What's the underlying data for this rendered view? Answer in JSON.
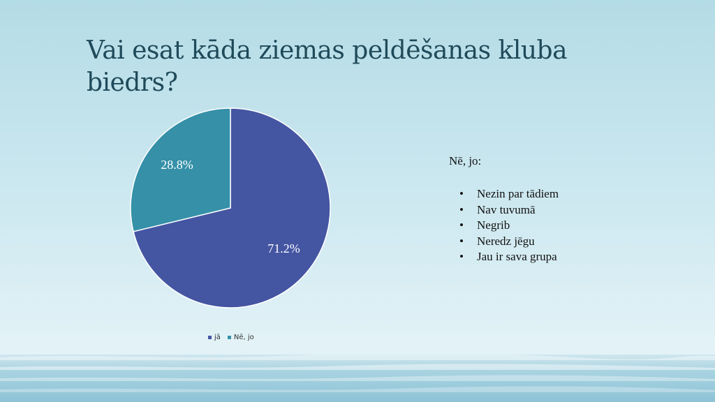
{
  "slide": {
    "title": "Vai esat kāda ziemas peldēšanas kluba biedrs?"
  },
  "chart_data": {
    "type": "pie",
    "categories": [
      "jā",
      "Nē, jo"
    ],
    "values": [
      71.2,
      28.8
    ],
    "data_labels": [
      "71.2%",
      "28.8%"
    ],
    "colors": [
      "#4455a2",
      "#3590a8"
    ],
    "legend_position": "bottom"
  },
  "side_panel": {
    "heading": "Nē, jo:",
    "reasons": [
      "Nezin par tādiem",
      "Nav tuvumā",
      "Negrib",
      "Neredz jēgu",
      "Jau ir sava grupa"
    ]
  },
  "legend": {
    "items": [
      {
        "label": "jā",
        "color": "#4455a2"
      },
      {
        "label": "Nē, jo",
        "color": "#3590a8"
      }
    ]
  }
}
